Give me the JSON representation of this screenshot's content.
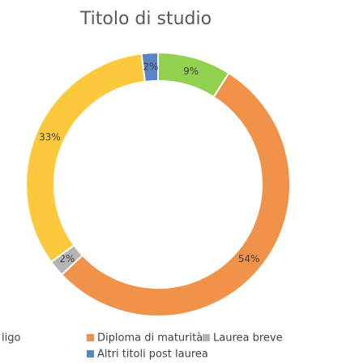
{
  "chart_data": {
    "type": "donut",
    "title": "Titolo di studio",
    "categories": [
      "ligo",
      "Diploma di maturità",
      "Laurea breve",
      null,
      "Altri titoli post laurea"
    ],
    "values": [
      9,
      54,
      2,
      33,
      2
    ],
    "value_labels": [
      "9%",
      "54%",
      "2%",
      "33%",
      "2%"
    ],
    "colors": [
      "#92d050",
      "#f0924a",
      "#b4b4b4",
      "#fdc93c",
      "#5b84c8"
    ]
  }
}
